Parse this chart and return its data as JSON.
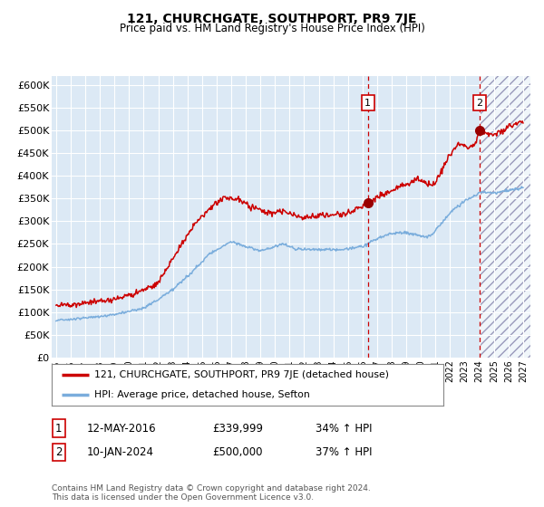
{
  "title": "121, CHURCHGATE, SOUTHPORT, PR9 7JE",
  "subtitle": "Price paid vs. HM Land Registry's House Price Index (HPI)",
  "ylim": [
    0,
    620000
  ],
  "yticks": [
    0,
    50000,
    100000,
    150000,
    200000,
    250000,
    300000,
    350000,
    400000,
    450000,
    500000,
    550000,
    600000
  ],
  "ytick_labels": [
    "£0",
    "£50K",
    "£100K",
    "£150K",
    "£200K",
    "£250K",
    "£300K",
    "£350K",
    "£400K",
    "£450K",
    "£500K",
    "£550K",
    "£600K"
  ],
  "bg_color": "#dce9f5",
  "grid_color": "#ffffff",
  "red_line_color": "#cc0000",
  "blue_line_color": "#7aaddc",
  "marker_color": "#990000",
  "vline_color": "#cc0000",
  "transaction1_x": 2016.36,
  "transaction1_y": 339999,
  "transaction1_label": "1",
  "transaction2_x": 2024.03,
  "transaction2_y": 500000,
  "transaction2_label": "2",
  "legend_line1": "121, CHURCHGATE, SOUTHPORT, PR9 7JE (detached house)",
  "legend_line2": "HPI: Average price, detached house, Sefton",
  "note1_label": "1",
  "note1_date": "12-MAY-2016",
  "note1_price": "£339,999",
  "note1_hpi": "34% ↑ HPI",
  "note2_label": "2",
  "note2_date": "10-JAN-2024",
  "note2_price": "£500,000",
  "note2_hpi": "37% ↑ HPI",
  "footer": "Contains HM Land Registry data © Crown copyright and database right 2024.\nThis data is licensed under the Open Government Licence v3.0.",
  "hatch_start_x": 2024.03,
  "hatch_end_x": 2027.5,
  "xlim_left": 1994.7,
  "xlim_right": 2027.5
}
